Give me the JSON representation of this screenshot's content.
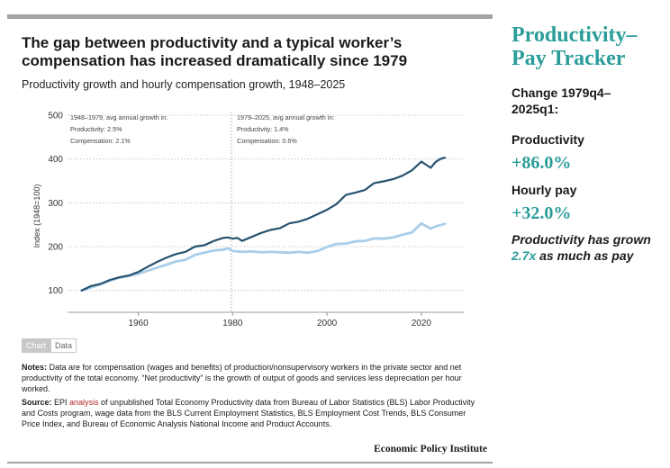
{
  "title": "The gap between productivity and a typical worker’s compensation has increased dramatically since 1979",
  "subtitle": "Productivity growth and hourly compensation growth, 1948–2025",
  "colors": {
    "productivity": "#27526f",
    "compensation": "#a9cde8",
    "accent": "#2a9d99",
    "link": "#b52a2a"
  },
  "chart_data": {
    "type": "line",
    "ylabel": "Index (1948=100)",
    "xlabel": "",
    "xlim": [
      1945,
      2029
    ],
    "ylim": [
      50,
      500
    ],
    "xticks": [
      1960,
      1980,
      2000,
      2020
    ],
    "yticks": [
      100,
      200,
      300,
      400,
      500
    ],
    "grid": "horizontal dotted",
    "vline": 1979.75,
    "annotations": [
      {
        "lines": [
          "1948–1979, avg annual growth in:",
          "Productivity: 2.5%",
          "Compensation: 2.1%"
        ]
      },
      {
        "lines": [
          "1979–2025, avg annual growth in:",
          "Productivity: 1.4%",
          "Compensation: 0.6%"
        ]
      }
    ],
    "series": [
      {
        "key": "productivity",
        "x": [
          1948,
          1950,
          1952,
          1954,
          1956,
          1958,
          1960,
          1962,
          1964,
          1966,
          1968,
          1970,
          1972,
          1974,
          1976,
          1978,
          1979,
          1980,
          1981,
          1982,
          1984,
          1986,
          1988,
          1990,
          1992,
          1994,
          1996,
          1998,
          2000,
          2002,
          2004,
          2006,
          2008,
          2010,
          2012,
          2014,
          2016,
          2018,
          2020,
          2021,
          2022,
          2023,
          2024,
          2025
        ],
        "values": [
          100,
          110,
          115,
          124,
          130,
          134,
          142,
          154,
          165,
          175,
          183,
          188,
          200,
          203,
          213,
          220,
          221,
          218,
          220,
          213,
          222,
          231,
          238,
          242,
          253,
          257,
          264,
          274,
          284,
          297,
          318,
          323,
          329,
          345,
          349,
          354,
          362,
          374,
          394,
          387,
          380,
          393,
          400,
          403
        ]
      },
      {
        "key": "compensation",
        "x": [
          1948,
          1950,
          1952,
          1954,
          1956,
          1958,
          1960,
          1962,
          1964,
          1966,
          1968,
          1970,
          1972,
          1974,
          1976,
          1978,
          1979,
          1980,
          1982,
          1984,
          1986,
          1988,
          1990,
          1992,
          1994,
          1996,
          1998,
          2000,
          2002,
          2004,
          2006,
          2008,
          2010,
          2012,
          2014,
          2016,
          2018,
          2020,
          2021,
          2022,
          2023,
          2024,
          2025
        ],
        "values": [
          100,
          107,
          114,
          122,
          129,
          133,
          138,
          145,
          152,
          159,
          166,
          170,
          181,
          186,
          191,
          193,
          196,
          190,
          188,
          189,
          187,
          188,
          187,
          186,
          188,
          186,
          190,
          199,
          206,
          207,
          212,
          213,
          219,
          218,
          221,
          227,
          232,
          253,
          247,
          241,
          246,
          249,
          252
        ]
      }
    ]
  },
  "tabs": {
    "chart": "Chart",
    "data": "Data"
  },
  "notes": {
    "notes_label": "Notes:",
    "notes_text": " Data are for compensation (wages and benefits) of production/nonsupervisory workers in the private sector and net productivity of the total economy. “Net productivity” is the growth of output of goods and services less depreciation per hour worked.",
    "source_label": "Source:",
    "source_pre": " EPI ",
    "source_link": "analysis",
    "source_post": " of unpublished Total Economy Productivity data from Bureau of Labor Statistics (BLS) Labor Productivity and Costs program, wage data from the BLS Current Employment Statistics, BLS Employment Cost Trends, BLS Consumer Price Index, and Bureau of Economic Analysis National Income and Product Accounts."
  },
  "logo": "Economic Policy Institute",
  "tracker": {
    "title_line1": "Productivity–",
    "title_line2": "Pay Tracker",
    "period_label_line1": "Change 1979q4–",
    "period_label_line2": "2025q1:",
    "productivity_label": "Productivity",
    "productivity_value": "+86.0%",
    "pay_label": "Hourly pay",
    "pay_value": "+32.0%",
    "note_pre": "Productivity has grown ",
    "note_highlight": "2.7x",
    "note_post": " as much as pay"
  }
}
